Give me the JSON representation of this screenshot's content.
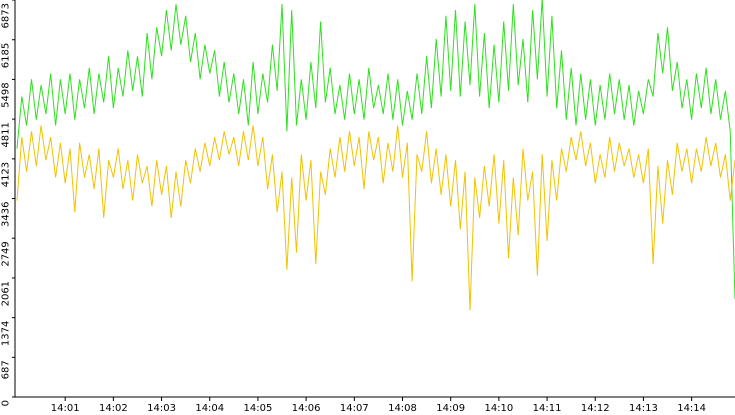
{
  "chart_data": {
    "type": "line",
    "categories": [
      null,
      null,
      null,
      null,
      null,
      null,
      null,
      null,
      null,
      null,
      "14:01",
      null,
      null,
      null,
      null,
      null,
      null,
      null,
      null,
      null,
      "14:02",
      null,
      null,
      null,
      null,
      null,
      null,
      null,
      null,
      null,
      "14:03",
      null,
      null,
      null,
      null,
      null,
      null,
      null,
      null,
      null,
      "14:04",
      null,
      null,
      null,
      null,
      null,
      null,
      null,
      null,
      null,
      "14:05",
      null,
      null,
      null,
      null,
      null,
      null,
      null,
      null,
      null,
      "14:06",
      null,
      null,
      null,
      null,
      null,
      null,
      null,
      null,
      null,
      "14:07",
      null,
      null,
      null,
      null,
      null,
      null,
      null,
      null,
      null,
      "14:08",
      null,
      null,
      null,
      null,
      null,
      null,
      null,
      null,
      null,
      "14:09",
      null,
      null,
      null,
      null,
      null,
      null,
      null,
      null,
      null,
      "14:10",
      null,
      null,
      null,
      null,
      null,
      null,
      null,
      null,
      null,
      "14:11",
      null,
      null,
      null,
      null,
      null,
      null,
      null,
      null,
      null,
      "14:12",
      null,
      null,
      null,
      null,
      null,
      null,
      null,
      null,
      null,
      "14:13",
      null,
      null,
      null,
      null,
      null,
      null,
      null,
      null,
      null,
      "14:14",
      null,
      null,
      null,
      null,
      null,
      null,
      null,
      null,
      null
    ],
    "series": [
      {
        "color": "#2ee01e",
        "values": [
          4300,
          5200,
          4700,
          5500,
          4800,
          5400,
          4900,
          5600,
          4700,
          5500,
          4900,
          5600,
          4800,
          5500,
          5000,
          5700,
          4900,
          5600,
          5100,
          5900,
          5000,
          5700,
          5200,
          6000,
          5300,
          5900,
          5200,
          6300,
          5500,
          6400,
          5900,
          6700,
          6000,
          6800,
          6100,
          6600,
          5800,
          6300,
          5500,
          6100,
          5600,
          6000,
          5200,
          5800,
          5100,
          5600,
          4900,
          5500,
          4700,
          5800,
          4900,
          5600,
          5100,
          6100,
          5300,
          6800,
          4600,
          6700,
          4700,
          5500,
          4800,
          5800,
          5000,
          6500,
          5100,
          5700,
          4900,
          5400,
          4800,
          5600,
          4900,
          5500,
          4800,
          5700,
          5000,
          5400,
          4900,
          5600,
          4800,
          5500,
          4700,
          5300,
          4800,
          5600,
          4900,
          5900,
          5000,
          6200,
          5200,
          6600,
          5300,
          6700,
          5200,
          6500,
          5400,
          6800,
          5200,
          6300,
          5000,
          6100,
          5100,
          6500,
          5300,
          6800,
          5400,
          6200,
          5100,
          6700,
          5500,
          6900,
          5200,
          6600,
          5000,
          6000,
          4800,
          5700,
          4700,
          5600,
          4800,
          5500,
          4700,
          5400,
          4800,
          5600,
          4900,
          5500,
          4800,
          5400,
          4700,
          5300,
          4900,
          5500,
          5200,
          6300,
          5600,
          6400,
          5300,
          5800,
          5000,
          5500,
          4800,
          5600,
          5000,
          5700,
          4900,
          5500,
          4800,
          5300,
          4600,
          1700
        ]
      },
      {
        "color": "#f2c200",
        "values": [
          3400,
          4500,
          3900,
          4600,
          4000,
          4700,
          4100,
          4500,
          3800,
          4400,
          3700,
          4300,
          3200,
          4400,
          3800,
          4200,
          3600,
          4300,
          3100,
          4100,
          3800,
          4300,
          3600,
          4100,
          3400,
          4200,
          3700,
          4000,
          3300,
          4100,
          3500,
          4000,
          3100,
          3900,
          3300,
          4100,
          3700,
          4300,
          3900,
          4400,
          4000,
          4500,
          4100,
          4600,
          4200,
          4500,
          4000,
          4600,
          4100,
          4700,
          4000,
          4500,
          3600,
          4200,
          3200,
          3900,
          2200,
          3800,
          2500,
          4200,
          3400,
          4100,
          2300,
          3900,
          3500,
          4300,
          3800,
          4500,
          3900,
          4600,
          4000,
          4500,
          3600,
          4600,
          4100,
          4500,
          3700,
          4400,
          3900,
          4700,
          3800,
          4400,
          2000,
          4200,
          3900,
          4600,
          3700,
          4300,
          3500,
          4200,
          3300,
          4100,
          2900,
          3900,
          1500,
          3800,
          3100,
          4000,
          3300,
          4200,
          3000,
          4100,
          2400,
          3800,
          2800,
          4300,
          3400,
          3900,
          2100,
          4200,
          2700,
          4100,
          3400,
          4300,
          3900,
          4500,
          4100,
          4600,
          4000,
          4400,
          3700,
          4200,
          3800,
          4500,
          3900,
          4400,
          4000,
          4300,
          3800,
          4200,
          3700,
          4300,
          2300,
          4000,
          3000,
          4100,
          3500,
          4400,
          3900,
          4300,
          3700,
          4300,
          3900,
          4500,
          4000,
          4400,
          3800,
          4200,
          3400,
          4100
        ]
      }
    ],
    "ylim": [
      0,
      6873
    ],
    "yticks": [
      0,
      687,
      1374,
      2061,
      2749,
      3436,
      4123,
      4811,
      5498,
      6185,
      6873
    ]
  }
}
